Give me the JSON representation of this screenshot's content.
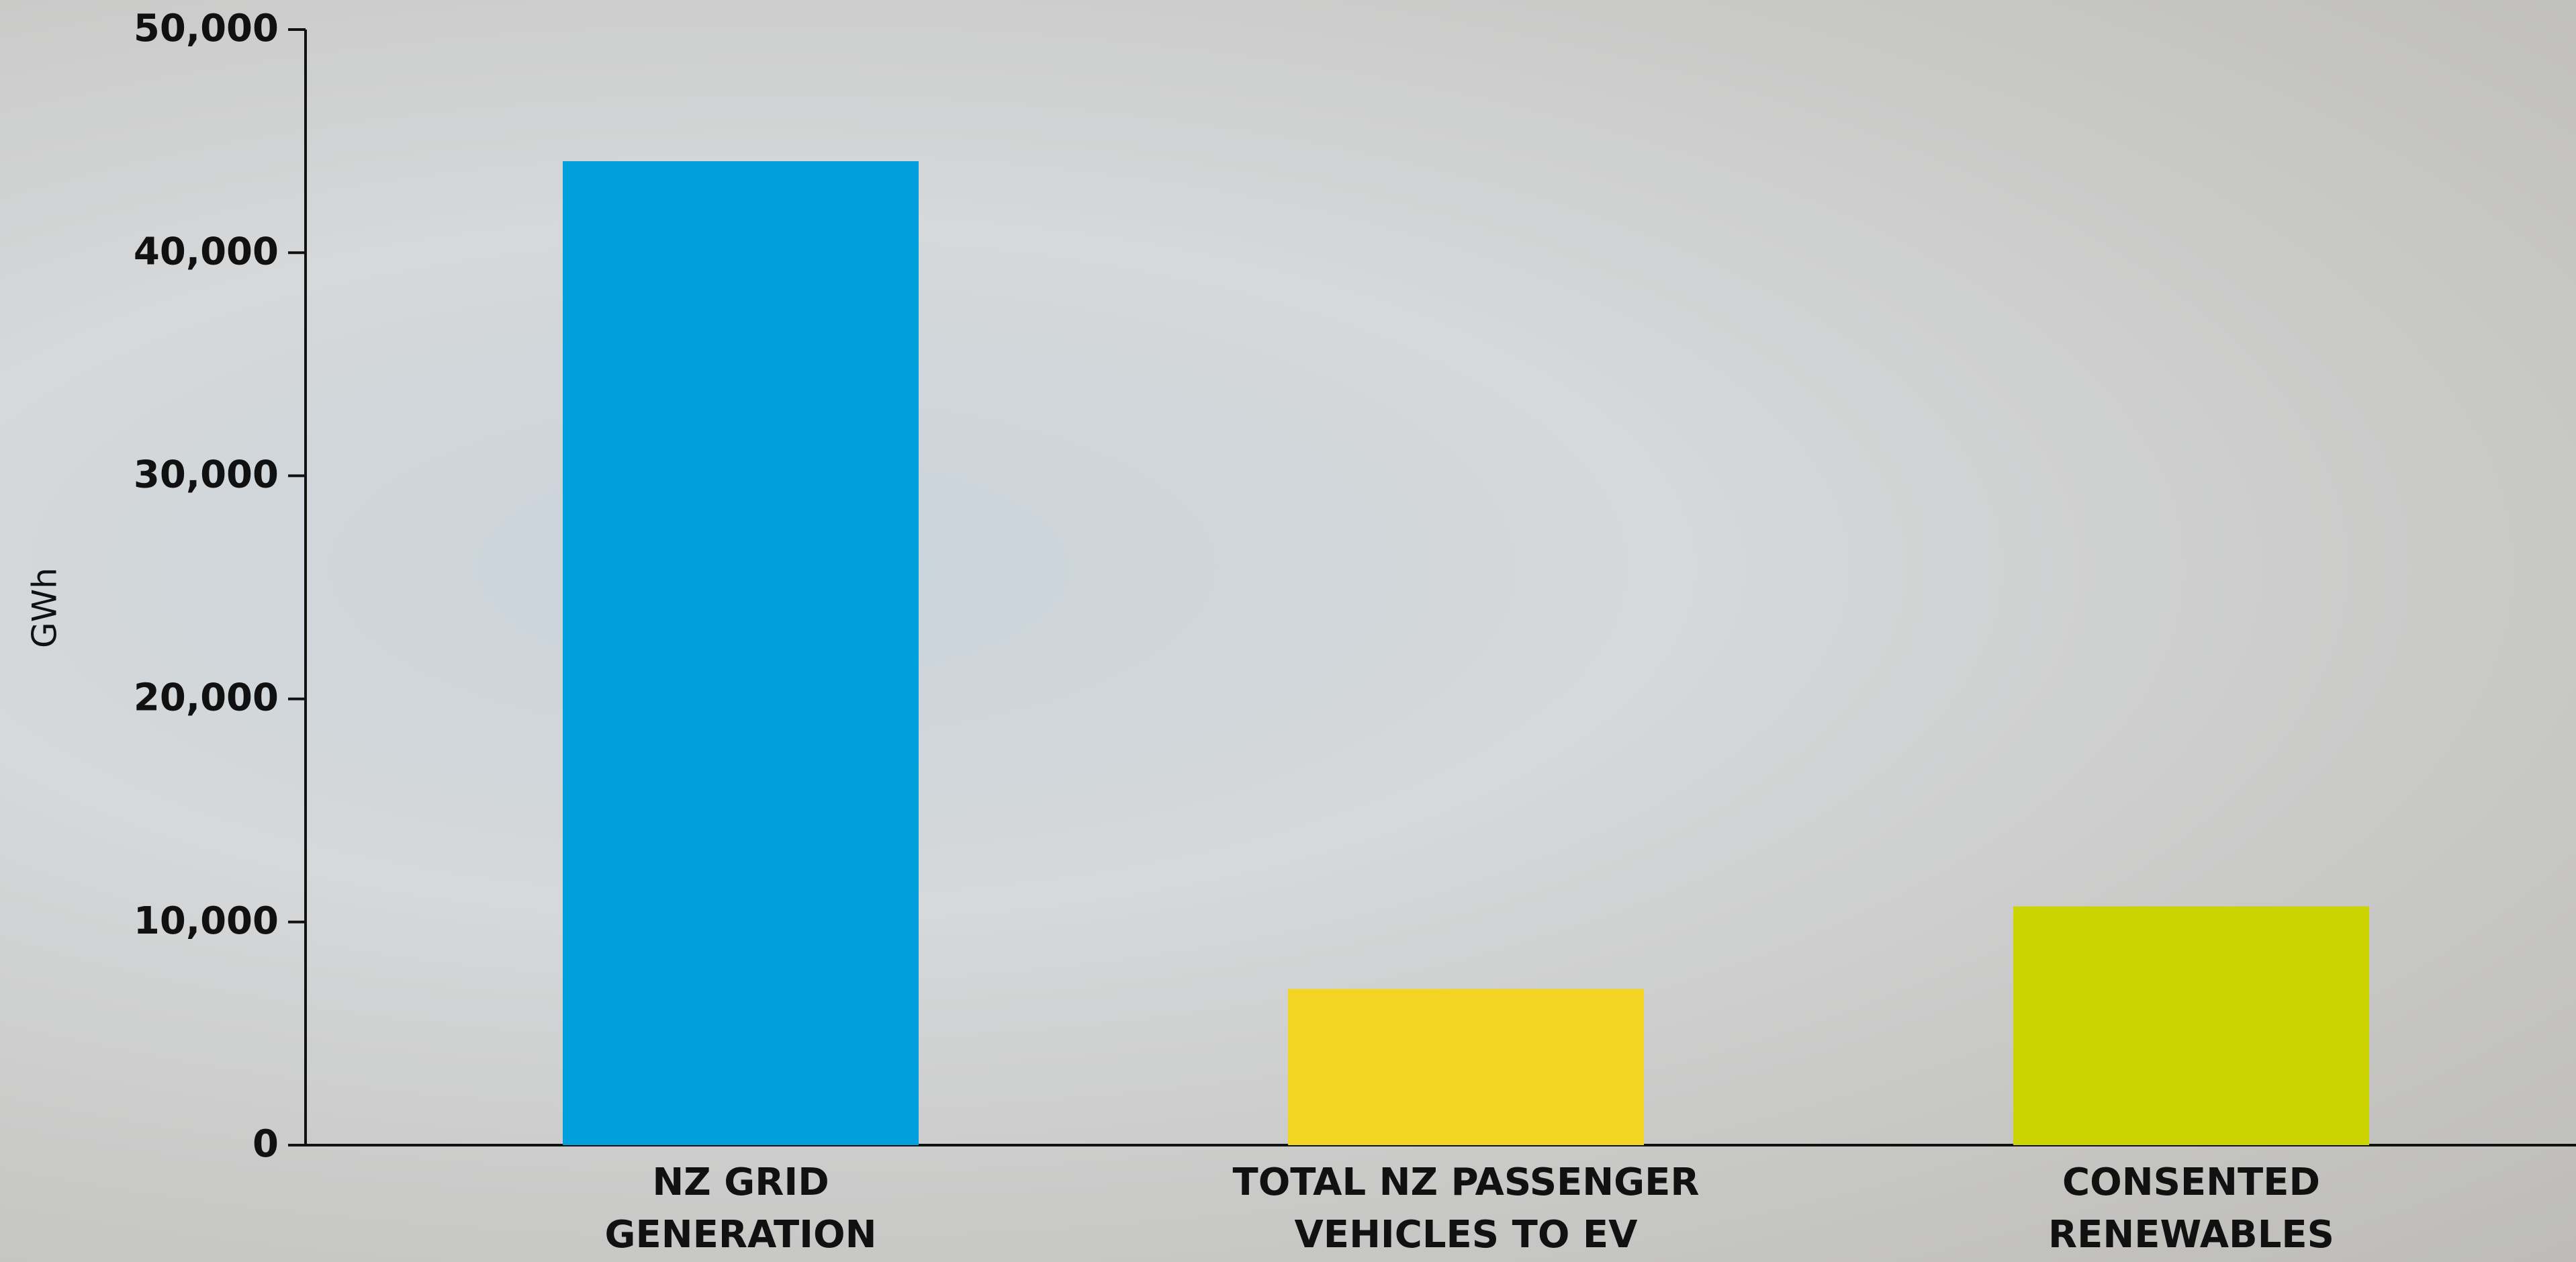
{
  "chart_data": {
    "type": "bar",
    "y_axis_label": "GWh",
    "categories": [
      "NZ GRID\nGENERATION",
      "TOTAL NZ PASSENGER\nVEHICLES TO EV",
      "CONSENTED\nRENEWABLES"
    ],
    "values": [
      44100,
      7000,
      10700
    ],
    "colors": [
      "#00a0dc",
      "#f4d423",
      "#cbd300"
    ],
    "ylim": [
      0,
      50000
    ],
    "yticks": [
      0,
      {
        "value": 10000,
        "label": "10,000"
      },
      {
        "value": 20000,
        "label": "20,000"
      },
      {
        "value": 30000,
        "label": "30,000"
      },
      {
        "value": 40000,
        "label": "40,000"
      },
      {
        "value": 50000,
        "label": "50,000"
      }
    ]
  }
}
